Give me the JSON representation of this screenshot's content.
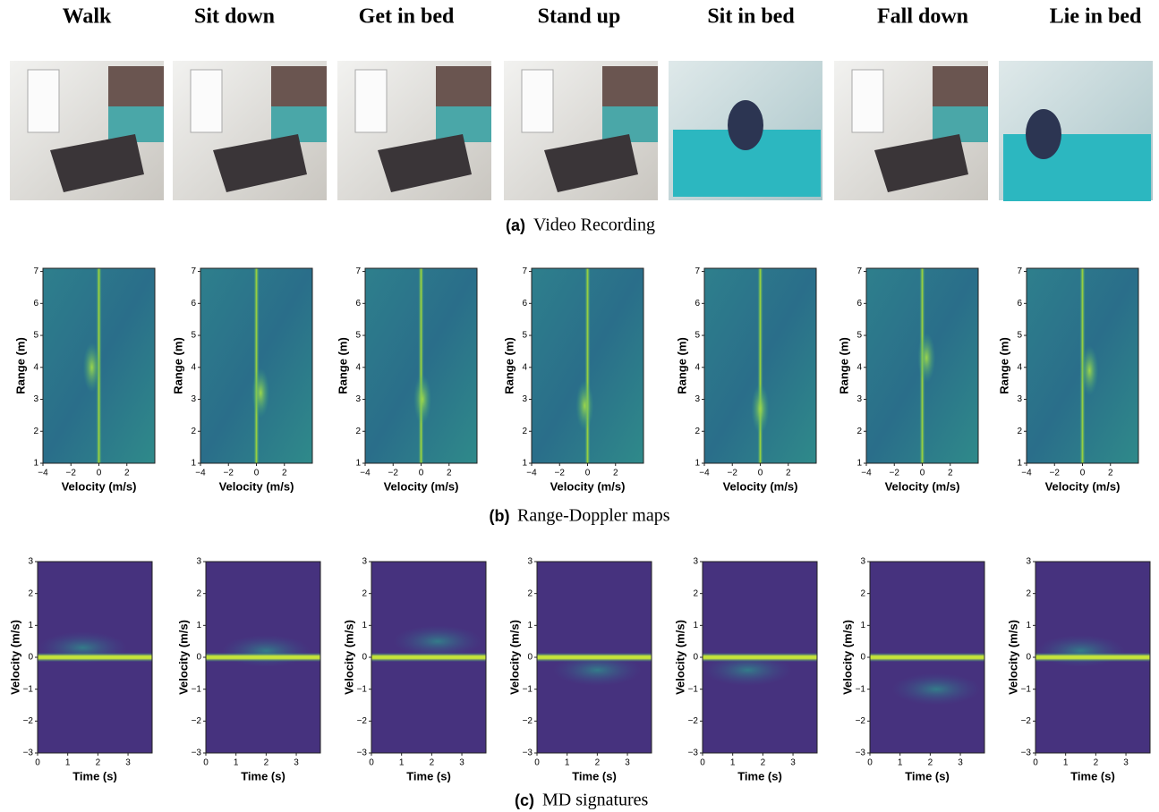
{
  "columns": [
    "Walk",
    "Sit down",
    "Get in bed",
    "Stand up",
    "Sit in bed",
    "Fall down",
    "Lie in bed"
  ],
  "captions": {
    "video": {
      "label": "(a)",
      "text": "Video Recording"
    },
    "range_doppler": {
      "label": "(b)",
      "text": "Range-Doppler maps"
    },
    "md": {
      "label": "(c)",
      "text": "MD signatures"
    }
  },
  "range_doppler": {
    "xlabel": "Velocity (m/s)",
    "ylabel": "Range (m)",
    "xlim": [
      -4,
      4
    ],
    "ylim": [
      1,
      7.1
    ],
    "xticks": [
      {
        "value": -4,
        "label": "−4"
      },
      {
        "value": -2,
        "label": "−2"
      },
      0,
      2
    ],
    "yticks": [
      1,
      2,
      3,
      4,
      5,
      6,
      7
    ]
  },
  "md": {
    "xlabel": "Time (s)",
    "ylabel": "Velocity (m/s)",
    "xlim": [
      0,
      3.8
    ],
    "ylim": [
      -3,
      3
    ],
    "xticks": [
      0,
      1,
      2,
      3
    ],
    "yticks": [
      {
        "value": -3,
        "label": "−3"
      },
      {
        "value": -2,
        "label": "−2"
      },
      {
        "value": -1,
        "label": "−1"
      },
      0,
      1,
      2,
      3
    ]
  }
}
